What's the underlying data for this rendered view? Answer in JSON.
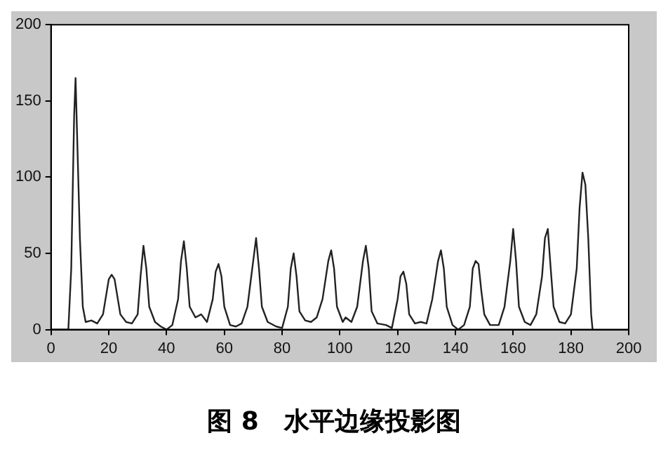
{
  "chart_data": {
    "type": "line",
    "title": "图 8　水平边缘投影图",
    "series": [
      {
        "color": "#222222",
        "x": [
          0,
          6,
          7,
          8,
          8.5,
          9,
          10,
          11,
          12,
          14,
          16,
          18,
          20,
          21,
          22,
          24,
          26,
          28,
          30,
          31,
          32,
          33,
          34,
          36,
          38,
          40,
          42,
          44,
          45,
          46,
          47,
          48,
          50,
          52,
          54,
          56,
          57,
          58,
          59,
          60,
          62,
          64,
          66,
          68,
          70,
          71,
          72,
          73,
          75,
          78,
          80,
          82,
          83,
          84,
          85,
          86,
          88,
          90,
          92,
          94,
          96,
          97,
          98,
          99,
          101,
          102,
          104,
          106,
          108,
          109,
          110,
          111,
          113,
          116,
          118,
          120,
          121,
          122,
          123,
          124,
          126,
          128,
          130,
          132,
          134,
          135,
          136,
          137,
          139,
          141,
          143,
          145,
          146,
          147,
          148,
          149,
          150,
          152,
          155,
          157,
          159,
          160,
          161,
          162,
          164,
          166,
          168,
          170,
          171,
          172,
          173,
          174,
          176,
          178,
          180,
          182,
          183,
          184,
          185,
          186,
          187,
          187.5
        ],
        "values": [
          0,
          0,
          40,
          140,
          165,
          130,
          60,
          15,
          5,
          6,
          4,
          10,
          33,
          36,
          33,
          10,
          5,
          4,
          10,
          35,
          55,
          40,
          15,
          5,
          2,
          0,
          3,
          20,
          45,
          58,
          40,
          15,
          8,
          10,
          5,
          20,
          38,
          43,
          35,
          15,
          3,
          2,
          4,
          15,
          45,
          60,
          40,
          15,
          5,
          2,
          1,
          15,
          40,
          50,
          35,
          12,
          6,
          5,
          8,
          20,
          45,
          52,
          40,
          15,
          5,
          8,
          5,
          15,
          45,
          55,
          40,
          12,
          4,
          3,
          1,
          20,
          35,
          38,
          30,
          10,
          4,
          5,
          4,
          20,
          45,
          52,
          40,
          15,
          3,
          0,
          3,
          15,
          40,
          45,
          43,
          25,
          10,
          3,
          3,
          15,
          45,
          66,
          45,
          15,
          5,
          3,
          10,
          35,
          60,
          66,
          40,
          15,
          5,
          4,
          10,
          40,
          80,
          103,
          95,
          60,
          10,
          0
        ]
      }
    ],
    "xlim": [
      0,
      200
    ],
    "xticks": [
      0,
      20,
      40,
      60,
      80,
      100,
      120,
      140,
      160,
      180,
      200
    ],
    "ylim": [
      0,
      200
    ],
    "yticks": [
      0,
      50,
      100,
      150,
      200
    ],
    "grid": false,
    "legend": false,
    "marker": "none",
    "line_style": "solid"
  }
}
